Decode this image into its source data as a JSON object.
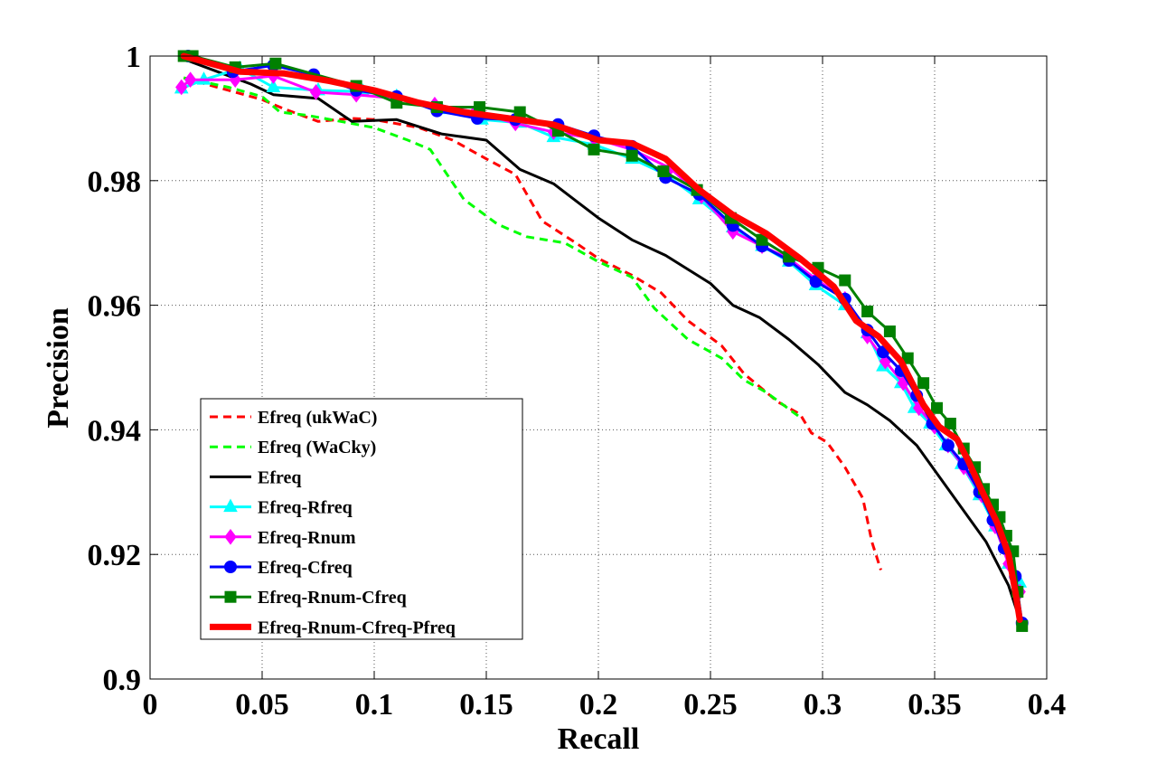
{
  "chart_data": {
    "type": "line",
    "title": "",
    "xlabel": "Recall",
    "ylabel": "Precision",
    "xlim": [
      0,
      0.4
    ],
    "ylim": [
      0.9,
      1
    ],
    "xticks": [
      "0",
      "0.05",
      "0.1",
      "0.15",
      "0.2",
      "0.25",
      "0.3",
      "0.35",
      "0.4"
    ],
    "yticks": [
      "0.9",
      "0.92",
      "0.94",
      "0.96",
      "0.98",
      "1"
    ],
    "grid": true,
    "legend_position": "lower-left",
    "series": [
      {
        "name": "Efreq (ukWaC)",
        "color": "#ff0000",
        "style": "dashed",
        "marker": "none",
        "points": [
          [
            0.015,
            0.9965
          ],
          [
            0.03,
            0.995
          ],
          [
            0.05,
            0.993
          ],
          [
            0.06,
            0.9915
          ],
          [
            0.075,
            0.9895
          ],
          [
            0.09,
            0.99
          ],
          [
            0.1,
            0.9898
          ],
          [
            0.12,
            0.9885
          ],
          [
            0.135,
            0.9865
          ],
          [
            0.15,
            0.9835
          ],
          [
            0.163,
            0.981
          ],
          [
            0.175,
            0.9735
          ],
          [
            0.19,
            0.97
          ],
          [
            0.2,
            0.9675
          ],
          [
            0.215,
            0.9648
          ],
          [
            0.228,
            0.962
          ],
          [
            0.24,
            0.9575
          ],
          [
            0.255,
            0.9535
          ],
          [
            0.265,
            0.949
          ],
          [
            0.28,
            0.9445
          ],
          [
            0.29,
            0.9425
          ],
          [
            0.295,
            0.9395
          ],
          [
            0.302,
            0.938
          ],
          [
            0.31,
            0.934
          ],
          [
            0.318,
            0.929
          ],
          [
            0.322,
            0.922
          ],
          [
            0.326,
            0.9175
          ]
        ]
      },
      {
        "name": "Efreq (WaCky)",
        "color": "#00ff00",
        "style": "dashed",
        "marker": "none",
        "points": [
          [
            0.015,
            0.9965
          ],
          [
            0.035,
            0.995
          ],
          [
            0.05,
            0.9935
          ],
          [
            0.058,
            0.991
          ],
          [
            0.07,
            0.9905
          ],
          [
            0.085,
            0.9895
          ],
          [
            0.1,
            0.9885
          ],
          [
            0.115,
            0.9865
          ],
          [
            0.125,
            0.985
          ],
          [
            0.14,
            0.977
          ],
          [
            0.155,
            0.973
          ],
          [
            0.168,
            0.971
          ],
          [
            0.185,
            0.97
          ],
          [
            0.2,
            0.967
          ],
          [
            0.215,
            0.9645
          ],
          [
            0.225,
            0.9595
          ],
          [
            0.24,
            0.9545
          ],
          [
            0.255,
            0.9515
          ],
          [
            0.265,
            0.948
          ],
          [
            0.275,
            0.946
          ],
          [
            0.29,
            0.942
          ]
        ]
      },
      {
        "name": "Efreq",
        "color": "#000000",
        "style": "solid",
        "marker": "none",
        "points": [
          [
            0.015,
            0.9995
          ],
          [
            0.03,
            0.9975
          ],
          [
            0.045,
            0.9955
          ],
          [
            0.055,
            0.9938
          ],
          [
            0.075,
            0.9932
          ],
          [
            0.09,
            0.9895
          ],
          [
            0.11,
            0.9898
          ],
          [
            0.13,
            0.9875
          ],
          [
            0.15,
            0.9865
          ],
          [
            0.165,
            0.9818
          ],
          [
            0.18,
            0.9795
          ],
          [
            0.2,
            0.974
          ],
          [
            0.215,
            0.9705
          ],
          [
            0.23,
            0.968
          ],
          [
            0.25,
            0.9635
          ],
          [
            0.26,
            0.96
          ],
          [
            0.272,
            0.958
          ],
          [
            0.285,
            0.9545
          ],
          [
            0.298,
            0.9505
          ],
          [
            0.31,
            0.946
          ],
          [
            0.32,
            0.944
          ],
          [
            0.33,
            0.9415
          ],
          [
            0.342,
            0.9375
          ],
          [
            0.355,
            0.931
          ],
          [
            0.365,
            0.926
          ],
          [
            0.373,
            0.922
          ],
          [
            0.383,
            0.915
          ],
          [
            0.388,
            0.9095
          ]
        ]
      },
      {
        "name": "Efreq-Rfreq",
        "color": "#00ffff",
        "style": "solid",
        "marker": "triangle",
        "points": [
          [
            0.014,
            0.9948
          ],
          [
            0.024,
            0.9962
          ],
          [
            0.04,
            0.998
          ],
          [
            0.055,
            0.995
          ],
          [
            0.075,
            0.9945
          ],
          [
            0.095,
            0.9943
          ],
          [
            0.11,
            0.9935
          ],
          [
            0.13,
            0.9915
          ],
          [
            0.148,
            0.9898
          ],
          [
            0.165,
            0.9893
          ],
          [
            0.18,
            0.987
          ],
          [
            0.198,
            0.9858
          ],
          [
            0.215,
            0.9835
          ],
          [
            0.23,
            0.981
          ],
          [
            0.245,
            0.977
          ],
          [
            0.26,
            0.9725
          ],
          [
            0.273,
            0.9695
          ],
          [
            0.285,
            0.967
          ],
          [
            0.297,
            0.9632
          ],
          [
            0.31,
            0.96
          ],
          [
            0.32,
            0.9555
          ],
          [
            0.327,
            0.9502
          ],
          [
            0.335,
            0.9475
          ],
          [
            0.341,
            0.9435
          ],
          [
            0.348,
            0.941
          ],
          [
            0.355,
            0.9375
          ],
          [
            0.362,
            0.9345
          ],
          [
            0.37,
            0.9295
          ],
          [
            0.377,
            0.9245
          ],
          [
            0.383,
            0.9185
          ],
          [
            0.388,
            0.9155
          ]
        ]
      },
      {
        "name": "Efreq-Rnum",
        "color": "#ff00ff",
        "style": "solid",
        "marker": "diamond",
        "points": [
          [
            0.014,
            0.995
          ],
          [
            0.018,
            0.9962
          ],
          [
            0.038,
            0.9962
          ],
          [
            0.055,
            0.9968
          ],
          [
            0.074,
            0.9942
          ],
          [
            0.092,
            0.9938
          ],
          [
            0.11,
            0.9932
          ],
          [
            0.127,
            0.9922
          ],
          [
            0.145,
            0.991
          ],
          [
            0.163,
            0.9892
          ],
          [
            0.18,
            0.9878
          ],
          [
            0.198,
            0.9868
          ],
          [
            0.215,
            0.985
          ],
          [
            0.232,
            0.982
          ],
          [
            0.246,
            0.9775
          ],
          [
            0.26,
            0.9718
          ],
          [
            0.273,
            0.9695
          ],
          [
            0.285,
            0.9675
          ],
          [
            0.297,
            0.9642
          ],
          [
            0.31,
            0.961
          ],
          [
            0.32,
            0.955
          ],
          [
            0.328,
            0.951
          ],
          [
            0.336,
            0.9475
          ],
          [
            0.343,
            0.9435
          ],
          [
            0.35,
            0.9405
          ],
          [
            0.356,
            0.9375
          ],
          [
            0.363,
            0.934
          ],
          [
            0.371,
            0.9295
          ],
          [
            0.377,
            0.9245
          ],
          [
            0.383,
            0.9185
          ],
          [
            0.388,
            0.914
          ]
        ]
      },
      {
        "name": "Efreq-Cfreq",
        "color": "#0000ff",
        "style": "solid",
        "marker": "circle",
        "points": [
          [
            0.017,
            1.0
          ],
          [
            0.037,
            0.9975
          ],
          [
            0.055,
            0.9985
          ],
          [
            0.073,
            0.997
          ],
          [
            0.092,
            0.9945
          ],
          [
            0.11,
            0.9935
          ],
          [
            0.128,
            0.9912
          ],
          [
            0.146,
            0.99
          ],
          [
            0.163,
            0.9898
          ],
          [
            0.182,
            0.989
          ],
          [
            0.198,
            0.9872
          ],
          [
            0.215,
            0.9855
          ],
          [
            0.23,
            0.9805
          ],
          [
            0.245,
            0.9778
          ],
          [
            0.26,
            0.9728
          ],
          [
            0.273,
            0.9695
          ],
          [
            0.285,
            0.9672
          ],
          [
            0.297,
            0.9638
          ],
          [
            0.31,
            0.961
          ],
          [
            0.32,
            0.956
          ],
          [
            0.327,
            0.9525
          ],
          [
            0.335,
            0.9495
          ],
          [
            0.342,
            0.9455
          ],
          [
            0.349,
            0.941
          ],
          [
            0.356,
            0.9375
          ],
          [
            0.363,
            0.9345
          ],
          [
            0.37,
            0.93
          ],
          [
            0.376,
            0.9255
          ],
          [
            0.381,
            0.921
          ],
          [
            0.386,
            0.9165
          ],
          [
            0.389,
            0.909
          ]
        ]
      },
      {
        "name": "Efreq-Rnum-Cfreq",
        "color": "#008000",
        "style": "solid",
        "marker": "square",
        "points": [
          [
            0.015,
            1.0
          ],
          [
            0.019,
            1.0
          ],
          [
            0.038,
            0.9982
          ],
          [
            0.056,
            0.9988
          ],
          [
            0.092,
            0.9952
          ],
          [
            0.11,
            0.9925
          ],
          [
            0.128,
            0.9918
          ],
          [
            0.147,
            0.9918
          ],
          [
            0.165,
            0.991
          ],
          [
            0.182,
            0.988
          ],
          [
            0.198,
            0.985
          ],
          [
            0.215,
            0.984
          ],
          [
            0.229,
            0.9815
          ],
          [
            0.244,
            0.9785
          ],
          [
            0.259,
            0.974
          ],
          [
            0.273,
            0.9705
          ],
          [
            0.285,
            0.9678
          ],
          [
            0.298,
            0.966
          ],
          [
            0.31,
            0.964
          ],
          [
            0.32,
            0.959
          ],
          [
            0.33,
            0.9558
          ],
          [
            0.338,
            0.9515
          ],
          [
            0.345,
            0.9475
          ],
          [
            0.351,
            0.9435
          ],
          [
            0.357,
            0.941
          ],
          [
            0.363,
            0.937
          ],
          [
            0.368,
            0.934
          ],
          [
            0.372,
            0.9305
          ],
          [
            0.376,
            0.928
          ],
          [
            0.379,
            0.926
          ],
          [
            0.382,
            0.923
          ],
          [
            0.385,
            0.9205
          ],
          [
            0.387,
            0.914
          ],
          [
            0.389,
            0.9085
          ]
        ]
      },
      {
        "name": "Efreq-Rnum-Cfreq-Pfreq",
        "color": "#ff0000",
        "style": "solid",
        "marker": "none",
        "points": [
          [
            0.015,
            1.0
          ],
          [
            0.04,
            0.9975
          ],
          [
            0.06,
            0.9972
          ],
          [
            0.08,
            0.996
          ],
          [
            0.1,
            0.9945
          ],
          [
            0.12,
            0.9925
          ],
          [
            0.14,
            0.991
          ],
          [
            0.16,
            0.99
          ],
          [
            0.18,
            0.989
          ],
          [
            0.2,
            0.9865
          ],
          [
            0.215,
            0.986
          ],
          [
            0.23,
            0.9835
          ],
          [
            0.245,
            0.9785
          ],
          [
            0.26,
            0.9745
          ],
          [
            0.275,
            0.9715
          ],
          [
            0.29,
            0.9675
          ],
          [
            0.305,
            0.963
          ],
          [
            0.315,
            0.9575
          ],
          [
            0.325,
            0.955
          ],
          [
            0.335,
            0.951
          ],
          [
            0.345,
            0.944
          ],
          [
            0.352,
            0.9405
          ],
          [
            0.36,
            0.9385
          ],
          [
            0.365,
            0.935
          ],
          [
            0.372,
            0.9295
          ],
          [
            0.378,
            0.925
          ],
          [
            0.383,
            0.92
          ],
          [
            0.386,
            0.914
          ],
          [
            0.388,
            0.9095
          ]
        ]
      }
    ]
  }
}
